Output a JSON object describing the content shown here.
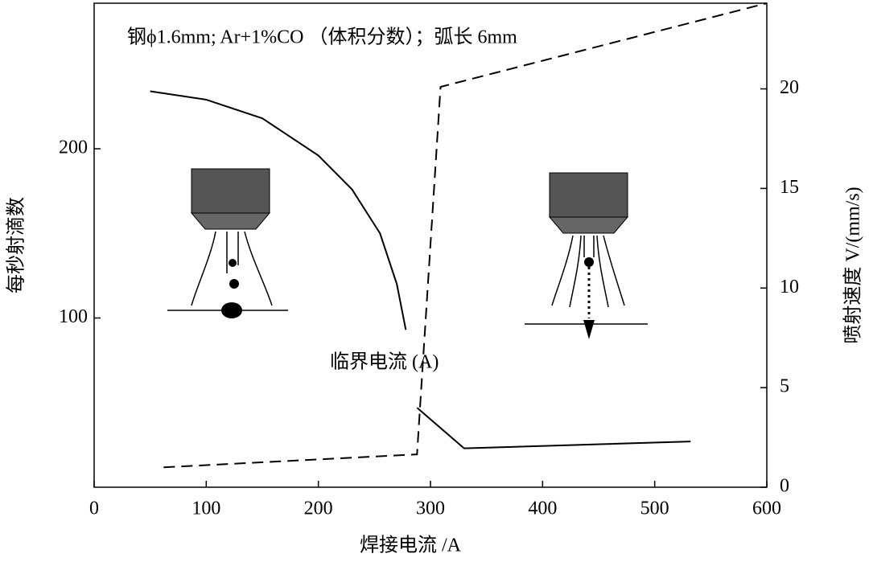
{
  "chart_data": {
    "type": "line",
    "annotations": [
      "钢ϕ1.6mm; Ar+1%CO （体积分数）；弧长 6mm",
      "临界电流 (A)"
    ],
    "x_label": "焊接电流 /A",
    "y_label": "每秒射滴数",
    "y2_label": "喷射速度 V/(mm/s)",
    "xlim": [
      0,
      600
    ],
    "xticks": [
      0,
      100,
      200,
      300,
      400,
      500,
      600
    ],
    "ylim": [
      0,
      286
    ],
    "yticks": [
      100,
      200
    ],
    "y2lim": [
      0,
      24.3
    ],
    "y2ticks": [
      0,
      5,
      10,
      15,
      20
    ],
    "series": [
      {
        "x": [
          50,
          100,
          150,
          200,
          230,
          255,
          270,
          278
        ],
        "values": [
          234,
          229,
          218,
          196,
          176,
          150,
          120,
          93
        ],
        "color": "#000000",
        "dashed": false
      },
      {
        "x": [
          288,
          330,
          532
        ],
        "values": [
          47,
          23,
          27
        ],
        "color": "#000000",
        "dashed": false
      },
      {
        "x": [
          62,
          288,
          309,
          600
        ],
        "values": [
          1.0,
          1.65,
          20.1,
          24.3
        ],
        "color": "#000000",
        "dashed": true,
        "axis": "y2"
      }
    ]
  }
}
